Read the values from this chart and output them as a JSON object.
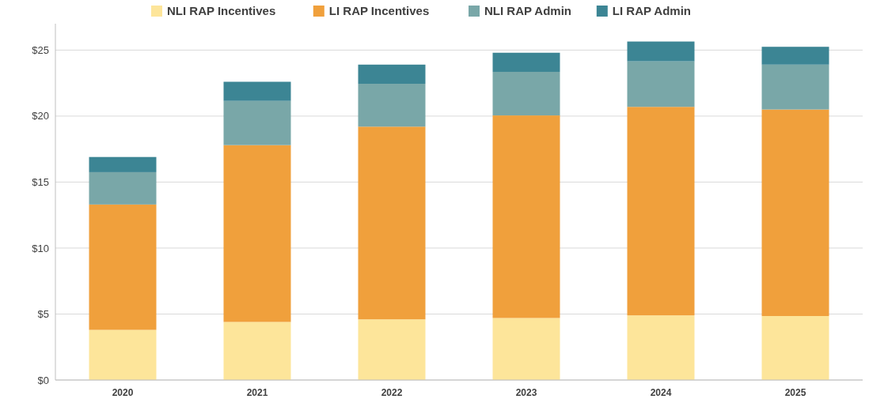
{
  "chart_data": {
    "type": "bar",
    "stacked": true,
    "categories": [
      "2020",
      "2021",
      "2022",
      "2023",
      "2024",
      "2025"
    ],
    "series": [
      {
        "name": "NLI RAP Incentives",
        "color": "#fde59a",
        "values": [
          3.8,
          4.4,
          4.6,
          4.7,
          4.9,
          4.85
        ]
      },
      {
        "name": "LI RAP Incentives",
        "color": "#f0a03c",
        "values": [
          9.5,
          13.4,
          14.6,
          15.35,
          15.8,
          15.65
        ]
      },
      {
        "name": "NLI RAP Admin",
        "color": "#79a7a8",
        "values": [
          2.45,
          3.35,
          3.25,
          3.3,
          3.45,
          3.4
        ]
      },
      {
        "name": "LI RAP Admin",
        "color": "#3c8594",
        "values": [
          1.15,
          1.45,
          1.45,
          1.45,
          1.5,
          1.35
        ]
      }
    ],
    "ylim": [
      0,
      27
    ],
    "yticks": [
      {
        "value": 0,
        "label": "$0"
      },
      {
        "value": 5,
        "label": "$5"
      },
      {
        "value": 10,
        "label": "$10"
      },
      {
        "value": 15,
        "label": "$15"
      },
      {
        "value": 20,
        "label": "$20"
      },
      {
        "value": 25,
        "label": "$25"
      }
    ],
    "grid": "y",
    "legend": "top"
  }
}
